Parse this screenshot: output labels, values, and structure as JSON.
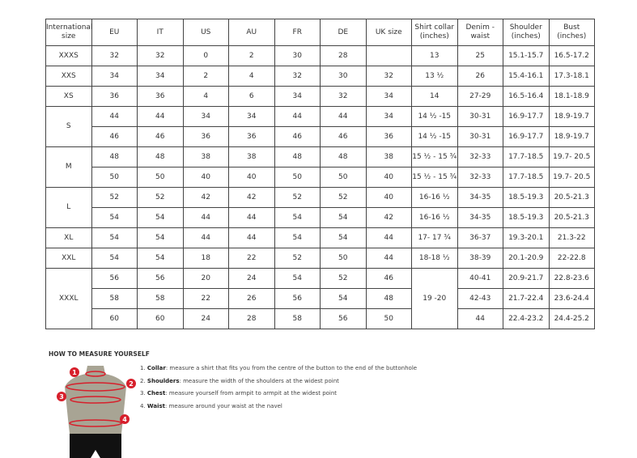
{
  "table": {
    "headers": [
      "International size",
      "EU",
      "IT",
      "US",
      "AU",
      "FR",
      "DE",
      "UK size",
      "Shirt collar (inches)",
      "Denim - waist",
      "Shoulder (inches)",
      "Bust (inches)"
    ],
    "rows": [
      [
        "XXXS",
        "32",
        "32",
        "0",
        "2",
        "30",
        "28",
        "",
        "13",
        "25",
        "15.1-15.7",
        "16.5-17.2"
      ],
      [
        "XXS",
        "34",
        "34",
        "2",
        "4",
        "32",
        "30",
        "32",
        "13 ½",
        "26",
        "15.4-16.1",
        "17.3-18.1"
      ],
      [
        "XS",
        "36",
        "36",
        "4",
        "6",
        "34",
        "32",
        "34",
        "14",
        "27-29",
        "16.5-16.4",
        "18.1-18.9"
      ],
      [
        "S",
        "44",
        "44",
        "34",
        "34",
        "44",
        "44",
        "34",
        "14 ½ -15",
        "30-31",
        "16.9-17.7",
        "18.9-19.7"
      ],
      [
        null,
        "46",
        "46",
        "36",
        "36",
        "46",
        "46",
        "36",
        "14 ½ -15",
        "30-31",
        "16.9-17.7",
        "18.9-19.7"
      ],
      [
        "M",
        "48",
        "48",
        "38",
        "38",
        "48",
        "48",
        "38",
        "15 ½ - 15 ¾",
        "32-33",
        "17.7-18.5",
        "19.7- 20.5"
      ],
      [
        null,
        "50",
        "50",
        "40",
        "40",
        "50",
        "50",
        "40",
        "15 ½ - 15 ¾",
        "32-33",
        "17.7-18.5",
        "19.7- 20.5"
      ],
      [
        "L",
        "52",
        "52",
        "42",
        "42",
        "52",
        "52",
        "40",
        "16-16 ½",
        "34-35",
        "18.5-19.3",
        "20.5-21.3"
      ],
      [
        null,
        "54",
        "54",
        "44",
        "44",
        "54",
        "54",
        "42",
        "16-16 ½",
        "34-35",
        "18.5-19.3",
        "20.5-21.3"
      ],
      [
        "XL",
        "54",
        "54",
        "44",
        "44",
        "54",
        "54",
        "44",
        "17- 17 ¾",
        "36-37",
        "19.3-20.1",
        "21.3-22"
      ],
      [
        "XXL",
        "54",
        "54",
        "18",
        "22",
        "52",
        "50",
        "44",
        "18-18 ½",
        "38-39",
        "20.1-20.9",
        "22-22.8"
      ],
      [
        "XXXL",
        "56",
        "56",
        "20",
        "24",
        "54",
        "52",
        "46",
        "19 -20",
        "40-41",
        "20.9-21.7",
        "22.8-23.6"
      ],
      [
        null,
        "58",
        "58",
        "22",
        "26",
        "56",
        "54",
        "48",
        null,
        "42-43",
        "21.7-22.4",
        "23.6-24.4"
      ],
      [
        null,
        "60",
        "60",
        "24",
        "28",
        "58",
        "56",
        "50",
        null,
        "44",
        "22.4-23.2",
        "24.4-25.2"
      ]
    ]
  },
  "measure": {
    "title": "HOW TO MEASURE YOURSELF",
    "markers": [
      "1",
      "2",
      "3",
      "4"
    ],
    "steps": [
      {
        "num": "1.",
        "label": "Collar",
        "text": ": measure a shirt that fits you from the centre of the button to the end of the buttonhole"
      },
      {
        "num": "2.",
        "label": "Shoulders",
        "text": ": measure the width of the shoulders at the widest point"
      },
      {
        "num": "3.",
        "label": "Chest",
        "text": ": measure yourself from armpit to armpit at the widest point"
      },
      {
        "num": "4.",
        "label": "Waist",
        "text": ": measure around your waist at the navel"
      }
    ]
  },
  "colors": {
    "marker": "#d71f2b",
    "torso": "#a8a494",
    "shorts": "#111111"
  }
}
